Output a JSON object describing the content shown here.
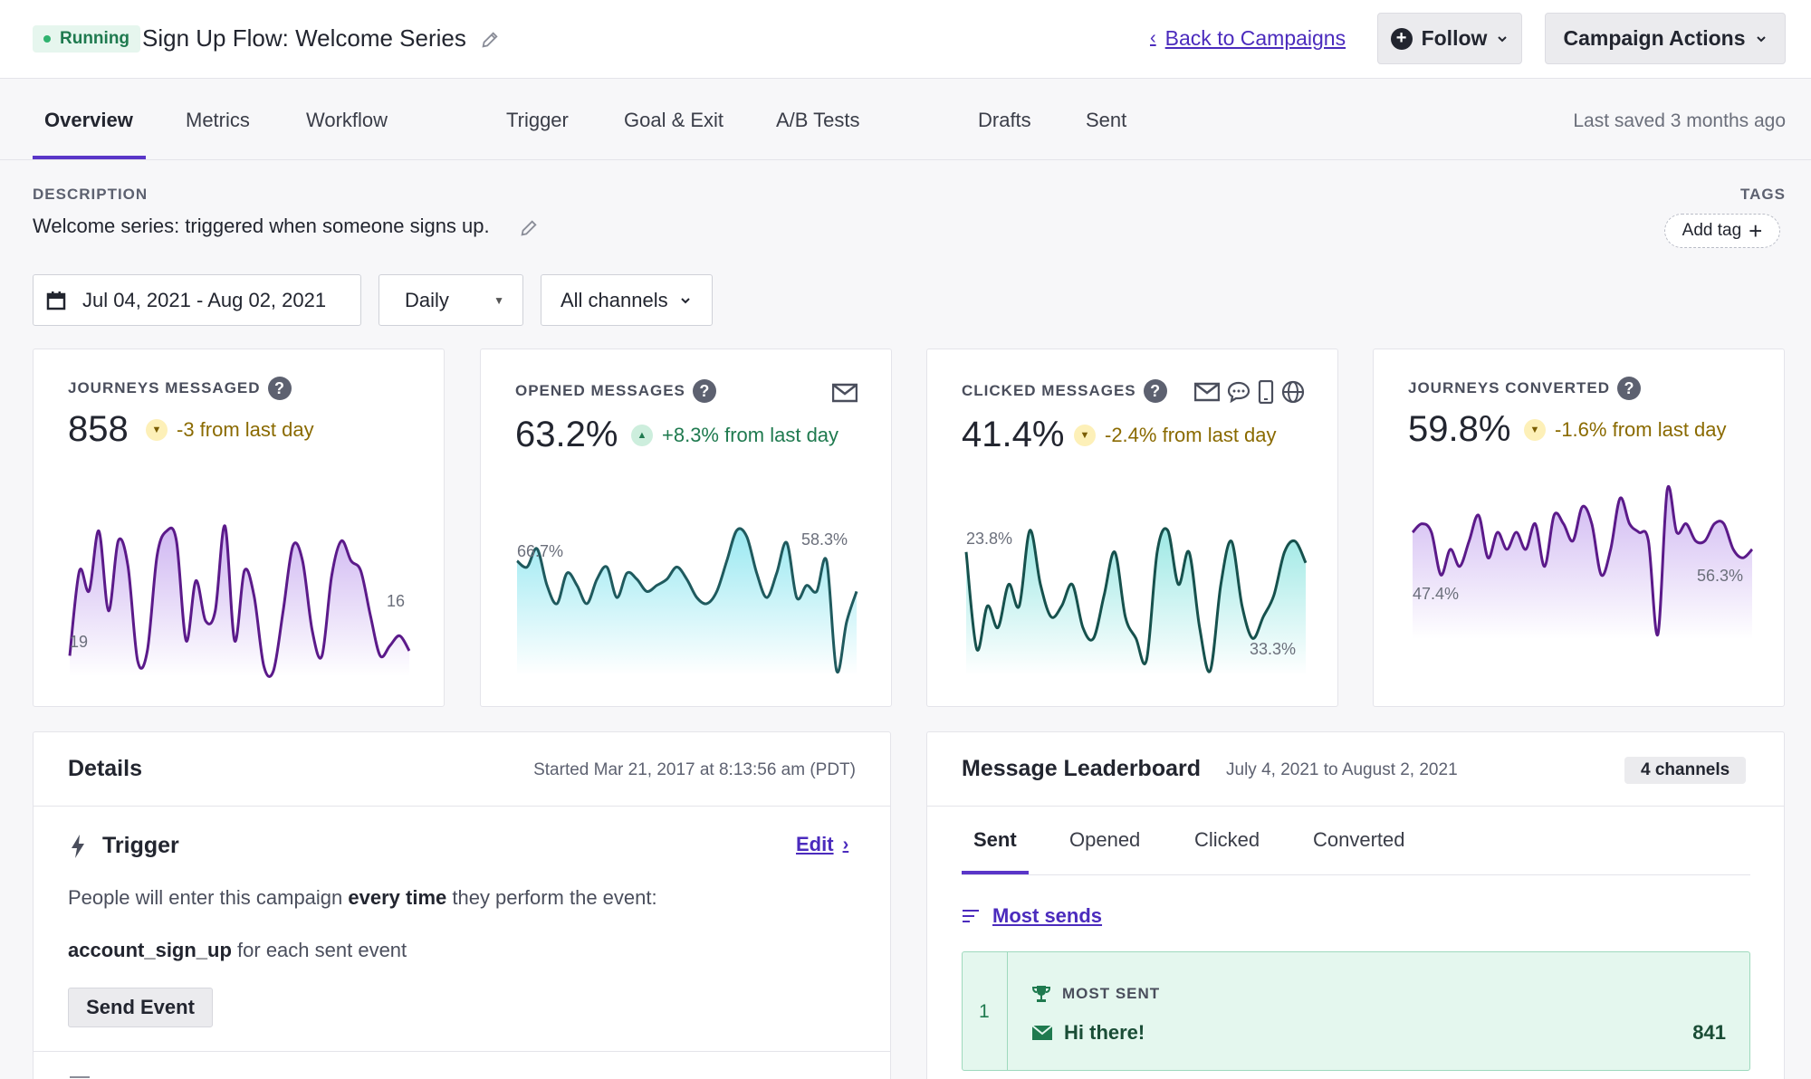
{
  "header": {
    "status": "Running",
    "title": "Sign Up Flow: Welcome Series",
    "back_link": "Back to Campaigns",
    "follow": "Follow",
    "campaign_actions": "Campaign Actions"
  },
  "tabs": [
    "Overview",
    "Metrics",
    "Workflow",
    "Trigger",
    "Goal & Exit",
    "A/B Tests",
    "Drafts",
    "Sent"
  ],
  "last_saved": "Last saved 3 months ago",
  "description": {
    "label": "DESCRIPTION",
    "text": "Welcome series: triggered when someone signs up."
  },
  "tags": {
    "label": "TAGS",
    "add_tag": "Add tag"
  },
  "filters": {
    "date_range": "Jul 04, 2021 - Aug 02, 2021",
    "interval": "Daily",
    "channels": "All channels"
  },
  "metrics": [
    {
      "title": "JOURNEYS MESSAGED",
      "value": "858",
      "change": "-3 from last day",
      "direction": "down",
      "start_label": "19",
      "end_label": "16",
      "series": [
        5,
        22,
        18,
        30,
        14,
        28,
        23,
        4,
        6,
        25,
        30,
        28,
        8,
        20,
        12,
        14,
        31,
        8,
        22,
        17,
        3,
        2,
        14,
        27,
        24,
        10,
        5,
        21,
        28,
        24,
        22,
        13,
        5,
        7,
        9,
        6
      ]
    },
    {
      "title": "OPENED MESSAGES",
      "value": "63.2%",
      "change": "+8.3% from last day",
      "direction": "up",
      "start_label": "66.7%",
      "end_label": "58.3%",
      "series": [
        62,
        61,
        64,
        58,
        55,
        60,
        58,
        55,
        59,
        61,
        56,
        60,
        59,
        57,
        58,
        59,
        61,
        59,
        56,
        55,
        57,
        62,
        67,
        66,
        60,
        56,
        60,
        65,
        56,
        58,
        57,
        62,
        44,
        52,
        57
      ]
    },
    {
      "title": "CLICKED MESSAGES",
      "value": "41.4%",
      "change": "-2.4% from last day",
      "direction": "down",
      "start_label": "23.8%",
      "end_label": "33.3%",
      "series": [
        33,
        24,
        28,
        26,
        30,
        28,
        35,
        30,
        27,
        28,
        30,
        26,
        25,
        29,
        33,
        27,
        25,
        23,
        33,
        35,
        30,
        33,
        26,
        22,
        30,
        34,
        28,
        25,
        27,
        29,
        33,
        34,
        32
      ]
    },
    {
      "title": "JOURNEYS CONVERTED",
      "value": "59.8%",
      "change": "-1.6% from last day",
      "direction": "down",
      "start_label": "47.4%",
      "end_label": "56.3%",
      "series": [
        57,
        58,
        57,
        52,
        55,
        53,
        56,
        59,
        54,
        57,
        55,
        57,
        55,
        58,
        53,
        59,
        58,
        56,
        60,
        58,
        52,
        55,
        61,
        58,
        57,
        56,
        45,
        62,
        57,
        58,
        56,
        56,
        58,
        58,
        55,
        54,
        55
      ]
    }
  ],
  "details": {
    "title": "Details",
    "started": "Started Mar 21, 2017 at 8:13:56 am (PDT)",
    "trigger_title": "Trigger",
    "edit": "Edit",
    "trigger_pre": "People will enter this campaign ",
    "trigger_bold": "every time",
    "trigger_post": " they perform the event:",
    "event_name": "account_sign_up",
    "event_suffix": " for each sent event",
    "send_event": "Send Event"
  },
  "leaderboard": {
    "title": "Message Leaderboard",
    "date_range": "July 4, 2021 to August 2, 2021",
    "channels": "4 channels",
    "tabs": [
      "Sent",
      "Opened",
      "Clicked",
      "Converted"
    ],
    "sort": "Most sends",
    "top": {
      "rank": "1",
      "label": "MOST SENT",
      "name": "Hi there!",
      "count": "841"
    }
  },
  "colors": {
    "accent": "#5a36c8",
    "link": "#4b2bbd",
    "purple_line": "#5b1a8a",
    "teal_line": "#1f5a5e",
    "dark_teal_line": "#16514d",
    "success_bg": "#e4f7ee"
  }
}
